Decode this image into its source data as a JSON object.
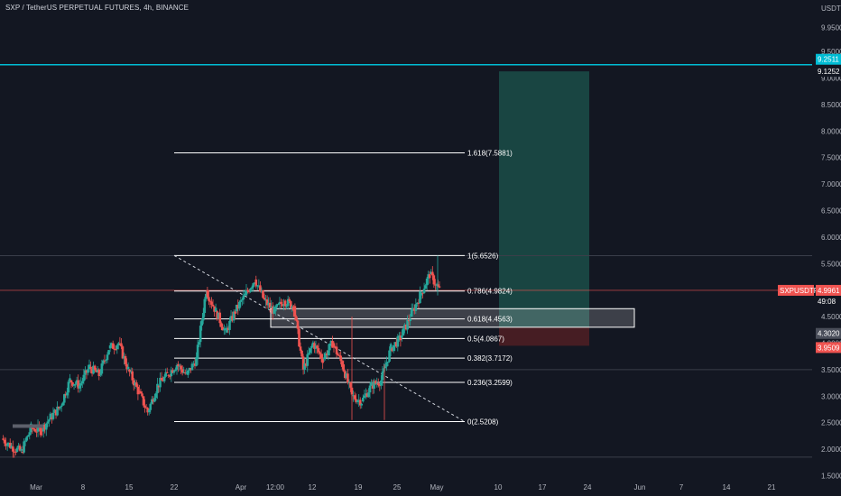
{
  "header": {
    "title": "SXP / TetherUS PERPETUAL FUTURES, 4h, BINANCE",
    "currency": "USDT"
  },
  "colors": {
    "background": "#131722",
    "up": "#26a69a",
    "down": "#ef5350",
    "horizontal_line": "#00bcd4",
    "target_zone": "#1b4d48",
    "stop_zone": "#4d1e24",
    "fib_line": "#ffffff",
    "grid": "#2a2e39"
  },
  "tags": {
    "top_line": "9.2511",
    "top_line_2": "9.1252",
    "symbol": "SXPUSDTPERP",
    "last_price": "4.9961",
    "countdown": "49:08",
    "entry": "4.3020",
    "stop": "3.9509"
  },
  "chart_data": {
    "type": "candlestick",
    "title": "SXP / TetherUS PERPETUAL FUTURES, 4h, BINANCE",
    "y_axis_unit": "USDT",
    "y_ticks": [
      "1.5000",
      "2.0000",
      "2.5000",
      "3.0000",
      "3.5000",
      "4.0000",
      "4.5000",
      "5.0000",
      "5.5000",
      "6.0000",
      "6.5000",
      "7.0000",
      "7.5000",
      "8.0000",
      "8.5000",
      "9.0000",
      "9.5000",
      "9.9500"
    ],
    "x_ticks": [
      "Mar",
      "8",
      "15",
      "22",
      "Apr",
      "12:00",
      "12",
      "19",
      "25",
      "May",
      "10",
      "17",
      "24",
      "Jun",
      "7",
      "14",
      "21"
    ],
    "ylim": [
      1.3,
      10.0
    ],
    "close_path": [
      {
        "x": "Feb 27",
        "y": 2.2
      },
      {
        "x": "Mar 1",
        "y": 2.05
      },
      {
        "x": "Mar 3",
        "y": 1.95
      },
      {
        "x": "Mar 5",
        "y": 2.4
      },
      {
        "x": "Mar 7",
        "y": 2.35
      },
      {
        "x": "Mar 9",
        "y": 2.6
      },
      {
        "x": "Mar 11",
        "y": 2.8
      },
      {
        "x": "Mar 13",
        "y": 3.3
      },
      {
        "x": "Mar 15",
        "y": 3.2
      },
      {
        "x": "Mar 17",
        "y": 3.55
      },
      {
        "x": "Mar 19",
        "y": 3.4
      },
      {
        "x": "Mar 21",
        "y": 3.9
      },
      {
        "x": "Mar 22",
        "y": 4.0
      },
      {
        "x": "Mar 23",
        "y": 3.5
      },
      {
        "x": "Mar 24",
        "y": 3.1
      },
      {
        "x": "Mar 25",
        "y": 2.7
      },
      {
        "x": "Mar 27",
        "y": 3.2
      },
      {
        "x": "Mar 29",
        "y": 3.4
      },
      {
        "x": "Mar 31",
        "y": 3.6
      },
      {
        "x": "Apr 2",
        "y": 3.4
      },
      {
        "x": "Apr 3",
        "y": 3.7
      },
      {
        "x": "Apr 4",
        "y": 5.0
      },
      {
        "x": "Apr 5",
        "y": 4.6
      },
      {
        "x": "Apr 6",
        "y": 4.2
      },
      {
        "x": "Apr 7",
        "y": 4.6
      },
      {
        "x": "Apr 9",
        "y": 4.9
      },
      {
        "x": "Apr 11",
        "y": 5.2
      },
      {
        "x": "Apr 12",
        "y": 4.8
      },
      {
        "x": "Apr 14",
        "y": 4.6
      },
      {
        "x": "Apr 16",
        "y": 4.8
      },
      {
        "x": "Apr 17",
        "y": 4.7
      },
      {
        "x": "Apr 18",
        "y": 3.5
      },
      {
        "x": "Apr 19",
        "y": 4.0
      },
      {
        "x": "Apr 20",
        "y": 3.7
      },
      {
        "x": "Apr 21",
        "y": 4.0
      },
      {
        "x": "Apr 22",
        "y": 3.6
      },
      {
        "x": "Apr 23",
        "y": 3.0
      },
      {
        "x": "Apr 24",
        "y": 2.9
      },
      {
        "x": "Apr 25",
        "y": 3.2
      },
      {
        "x": "Apr 26",
        "y": 3.3
      },
      {
        "x": "Apr 27",
        "y": 3.9
      },
      {
        "x": "Apr 28",
        "y": 4.1
      },
      {
        "x": "Apr 29",
        "y": 4.5
      },
      {
        "x": "Apr 30",
        "y": 4.9
      },
      {
        "x": "May 1",
        "y": 5.3
      },
      {
        "x": "May 1b",
        "y": 5.0
      }
    ],
    "fibonacci": [
      {
        "label": "1(5.6526)",
        "value": 5.6526
      },
      {
        "label": "1.618(7.5881)",
        "value": 7.5881
      },
      {
        "label": "0.786(4.9824)",
        "value": 4.9824
      },
      {
        "label": "0.618(4.4563)",
        "value": 4.4563
      },
      {
        "label": "0.5(4.0867)",
        "value": 4.0867
      },
      {
        "label": "0.382(3.7172)",
        "value": 3.7172
      },
      {
        "label": "0.236(3.2599)",
        "value": 3.2599
      },
      {
        "label": "0(2.5208)",
        "value": 2.5208
      }
    ],
    "horizontal_lines": [
      9.2511,
      3.5,
      1.85,
      5.65
    ],
    "position": {
      "entry": 4.302,
      "target": 9.1252,
      "stop": 3.9509
    },
    "last_price": 4.9961,
    "grid": false,
    "legend": "none"
  }
}
